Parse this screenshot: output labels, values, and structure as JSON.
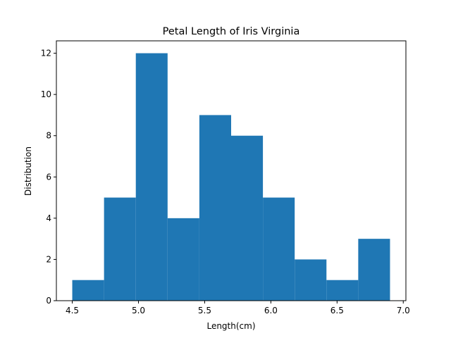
{
  "chart_data": {
    "type": "bar",
    "subtype": "histogram",
    "title": "Petal Length of Iris Virginia",
    "xlabel": "Length(cm)",
    "ylabel": "Distribution",
    "bin_edges": [
      4.5,
      4.74,
      4.98,
      5.22,
      5.46,
      5.7,
      5.94,
      6.18,
      6.42,
      6.66,
      6.9
    ],
    "values": [
      1,
      5,
      12,
      4,
      9,
      8,
      5,
      2,
      1,
      3
    ],
    "xlim": [
      4.38,
      7.02
    ],
    "ylim": [
      0,
      12.6
    ],
    "xticks": [
      4.5,
      5.0,
      5.5,
      6.0,
      6.5,
      7.0
    ],
    "xtick_labels": [
      "4.5",
      "5.0",
      "5.5",
      "6.0",
      "6.5",
      "7.0"
    ],
    "yticks": [
      0,
      2,
      4,
      6,
      8,
      10,
      12
    ],
    "ytick_labels": [
      "0",
      "2",
      "4",
      "6",
      "8",
      "10",
      "12"
    ],
    "grid": false,
    "bar_color": "#1f77b4"
  }
}
